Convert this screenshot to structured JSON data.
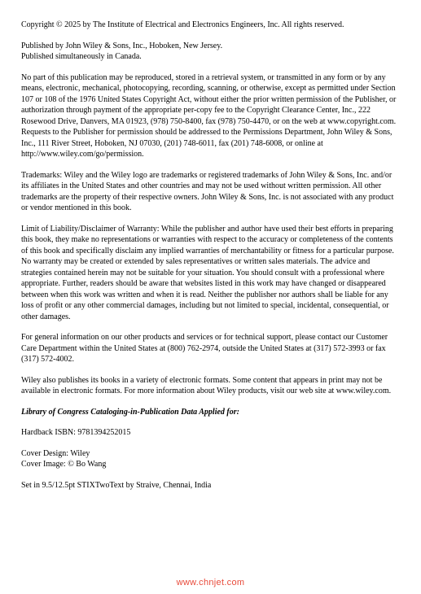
{
  "copyright_line1": "Copyright © 2025 by The Institute of Electrical and Electronics Engineers, Inc. All rights reserved.",
  "published_line1": "Published by John Wiley & Sons, Inc., Hoboken, New Jersey.",
  "published_line2": "Published simultaneously in Canada.",
  "no_part": "No part of this publication may be reproduced, stored in a retrieval system, or transmitted in any form or by any means, electronic, mechanical, photocopying, recording, scanning, or otherwise, except as permitted under Section 107 or 108 of the 1976 United States Copyright Act, without either the prior written permission of the Publisher, or authorization through payment of the appropriate per-copy fee to the Copyright Clearance Center, Inc., 222 Rosewood Drive, Danvers, MA 01923, (978) 750-8400, fax (978) 750-4470, or on the web at www.copyright.com. Requests to the Publisher for permission should be addressed to the Permissions Department, John Wiley & Sons, Inc., 111 River Street, Hoboken, NJ 07030, (201) 748-6011, fax (201) 748-6008, or online at http://www.wiley.com/go/permission.",
  "trademarks": "Trademarks: Wiley and the Wiley logo are trademarks or registered trademarks of John Wiley & Sons, Inc. and/or its affiliates in the United States and other countries and may not be used without written permission. All other trademarks are the property of their respective owners. John Wiley & Sons, Inc. is not associated with any product or vendor mentioned in this book.",
  "liability": "Limit of Liability/Disclaimer of Warranty: While the publisher and author have used their best efforts in preparing this book, they make no representations or warranties with respect to the accuracy or completeness of the contents of this book and specifically disclaim any implied warranties of merchantability or fitness for a particular purpose. No warranty may be created or extended by sales representatives or written sales materials. The advice and strategies contained herein may not be suitable for your situation. You should consult with a professional where appropriate. Further, readers should be aware that websites listed in this work may have changed or disappeared between when this work was written and when it is read. Neither the publisher nor authors shall be liable for any loss of profit or any other commercial damages, including but not limited to special, incidental, consequential, or other damages.",
  "general_info": "For general information on our other products and services or for technical support, please contact our Customer Care Department within the United States at (800) 762-2974, outside the United States at (317) 572-3993 or fax (317) 572-4002.",
  "electronic": "Wiley also publishes its books in a variety of electronic formats. Some content that appears in print may not be available in electronic formats. For more information about Wiley products, visit our web site at www.wiley.com.",
  "loc_heading": "Library of Congress Cataloging-in-Publication Data Applied for:",
  "isbn": "Hardback ISBN: 9781394252015",
  "cover_design": "Cover Design: Wiley",
  "cover_image": "Cover Image: © Bo Wang",
  "typeset": "Set in 9.5/12.5pt STIXTwoText by Straive, Chennai, India",
  "watermark": "www.chnjet.com",
  "colors": {
    "text": "#000000",
    "background": "#ffffff",
    "watermark": "#e84a3a"
  }
}
